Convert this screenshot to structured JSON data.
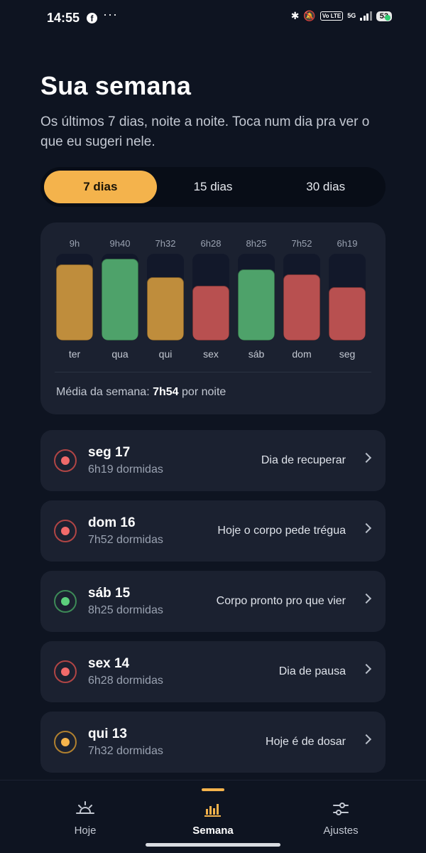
{
  "status_bar": {
    "time": "14:55",
    "app_icon": "facebook-icon",
    "more": "···",
    "network": "5G",
    "volte": "Vo LTE",
    "battery": "53"
  },
  "header": {
    "title": "Sua semana",
    "subtitle": "Os últimos 7 dias, noite a noite. Toca num dia pra ver o que eu sugeri nele."
  },
  "range_tabs": [
    {
      "label": "7 dias",
      "active": true
    },
    {
      "label": "15 dias",
      "active": false
    },
    {
      "label": "30 dias",
      "active": false
    }
  ],
  "colors": {
    "accent": "#f4b34c",
    "yellow": "#bf8d3c",
    "green": "#4ea26a",
    "red": "#b85050",
    "ring_red": "#b04545",
    "dot_red": "#f06a6a",
    "ring_green": "#3d8a57",
    "dot_green": "#5ccf7c",
    "ring_yellow": "#b0802f",
    "dot_yellow": "#f4b34c"
  },
  "chart_data": {
    "type": "bar",
    "categories": [
      "ter",
      "qua",
      "qui",
      "sex",
      "sáb",
      "dom",
      "seg"
    ],
    "value_labels": [
      "9h",
      "9h40",
      "7h32",
      "6h28",
      "8h25",
      "7h52",
      "6h19"
    ],
    "values_hours": [
      9.0,
      9.67,
      7.53,
      6.47,
      8.42,
      7.87,
      6.32
    ],
    "status": [
      "yellow",
      "green",
      "yellow",
      "red",
      "green",
      "red",
      "red"
    ],
    "ylim": [
      0,
      10.3
    ]
  },
  "average": {
    "prefix": "Média da semana:",
    "value": "7h54",
    "suffix": "por noite"
  },
  "days": [
    {
      "name": "seg 17",
      "sleep": "6h19 dormidas",
      "tip": "Dia de recuperar",
      "status": "red"
    },
    {
      "name": "dom 16",
      "sleep": "7h52 dormidas",
      "tip": "Hoje o corpo pede trégua",
      "status": "red"
    },
    {
      "name": "sáb 15",
      "sleep": "8h25 dormidas",
      "tip": "Corpo pronto pro que vier",
      "status": "green"
    },
    {
      "name": "sex 14",
      "sleep": "6h28 dormidas",
      "tip": "Dia de pausa",
      "status": "red"
    },
    {
      "name": "qui 13",
      "sleep": "7h32 dormidas",
      "tip": "Hoje é de dosar",
      "status": "yellow"
    }
  ],
  "bottom_nav": [
    {
      "label": "Hoje",
      "icon": "sunrise-icon",
      "active": false
    },
    {
      "label": "Semana",
      "icon": "bar-chart-icon",
      "active": true
    },
    {
      "label": "Ajustes",
      "icon": "sliders-icon",
      "active": false
    }
  ]
}
